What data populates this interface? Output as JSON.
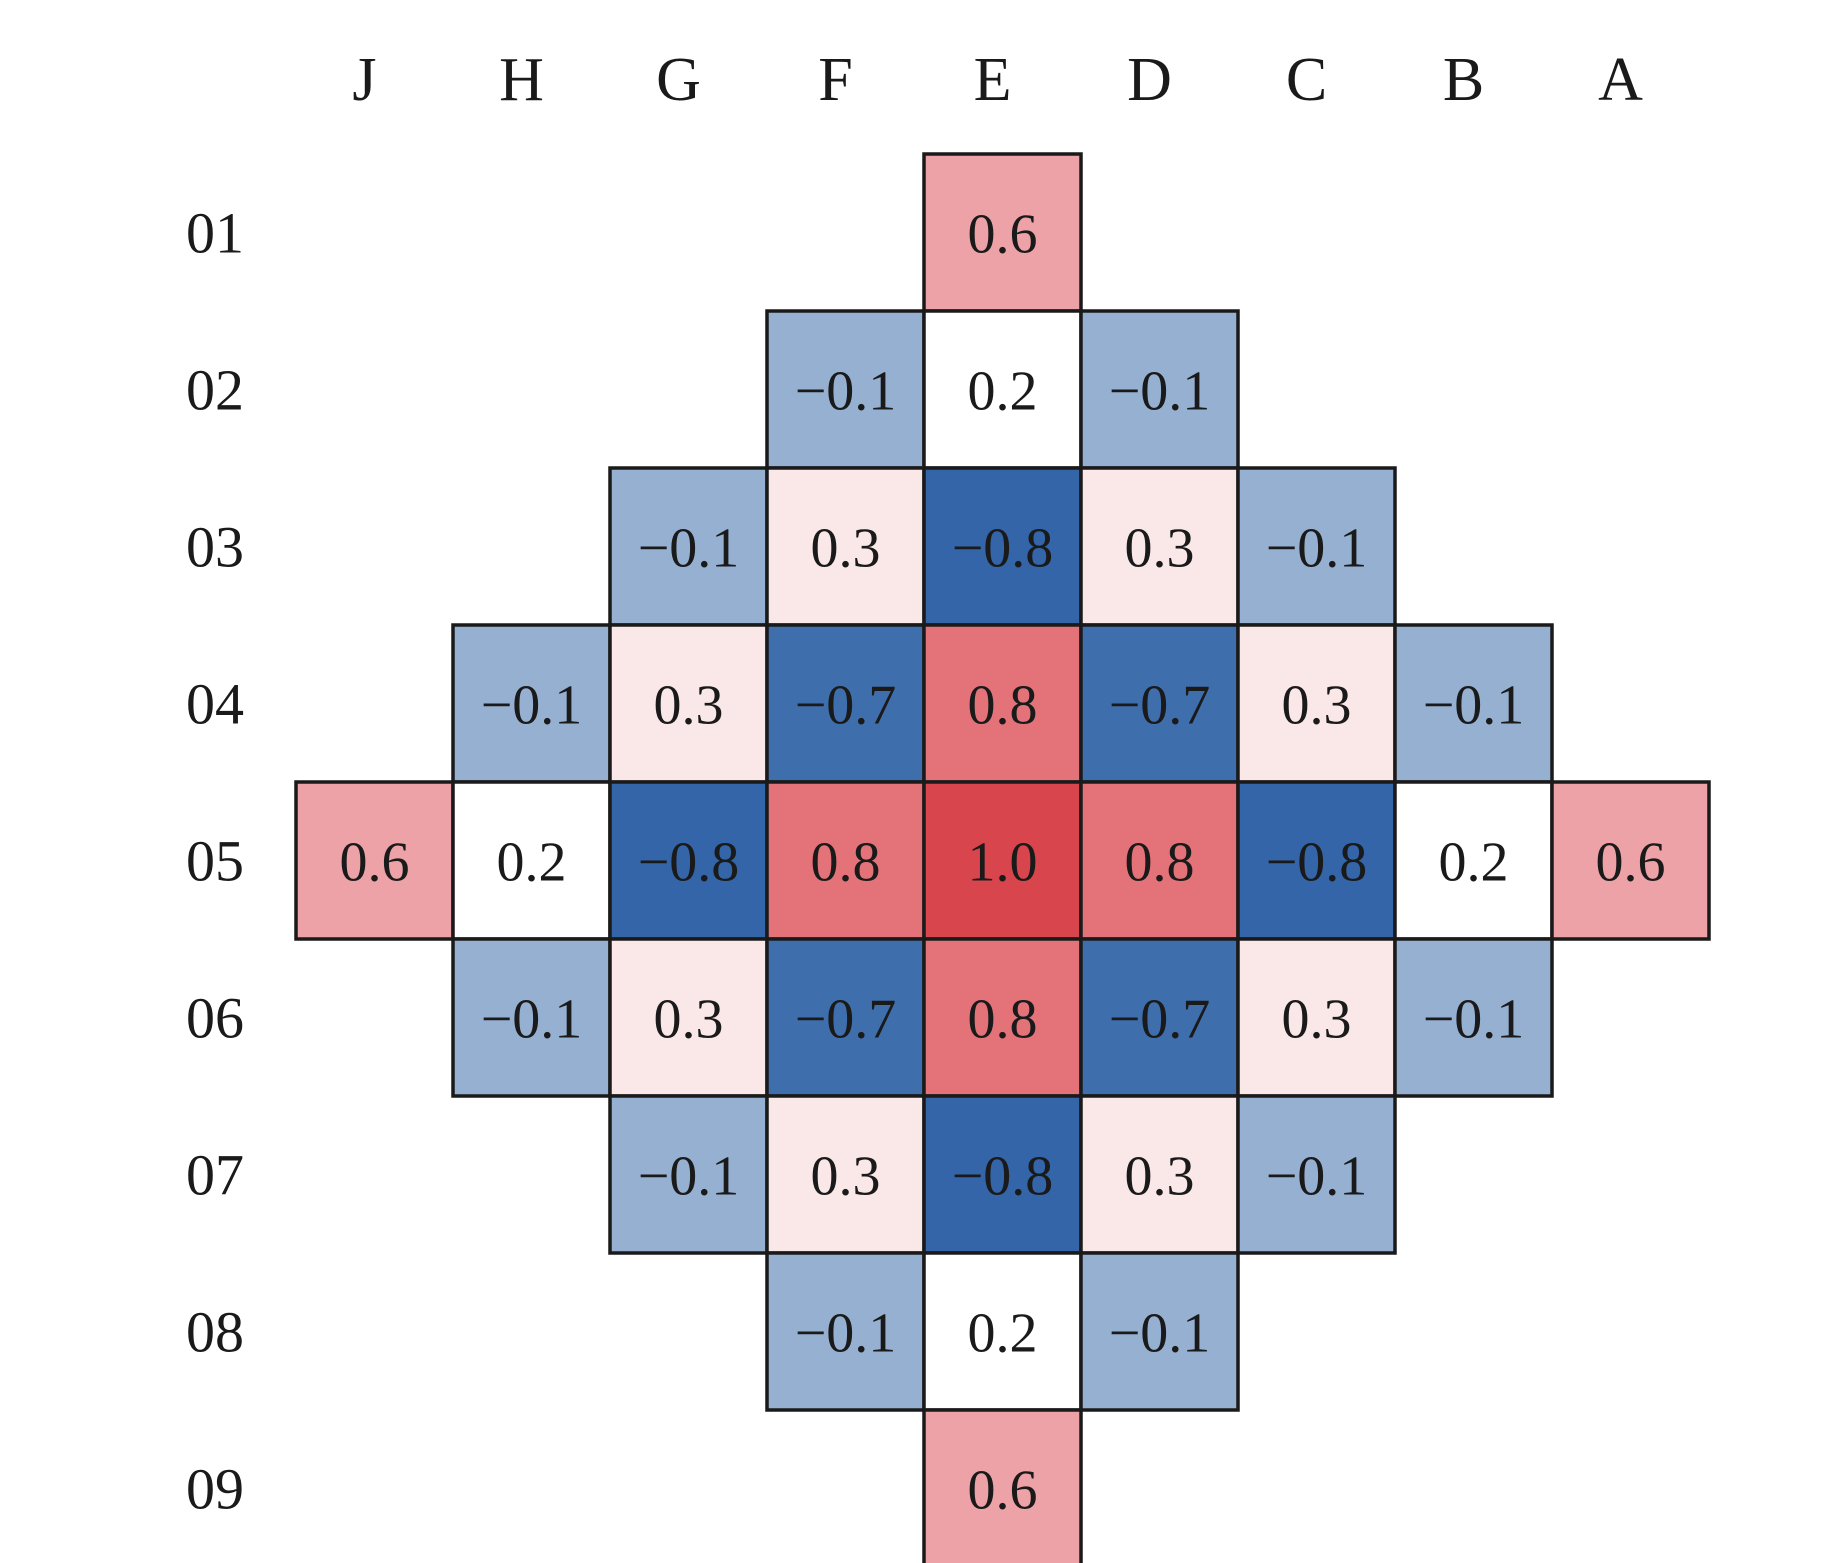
{
  "chart_data": {
    "type": "heatmap",
    "columns": [
      "J",
      "H",
      "G",
      "F",
      "E",
      "D",
      "C",
      "B",
      "A"
    ],
    "rows": [
      "01",
      "02",
      "03",
      "04",
      "05",
      "06",
      "07",
      "08",
      "09"
    ],
    "color_scale": {
      "negative_max": "#3465a8",
      "positive_max": "#d9454c",
      "zero": "#ffffff"
    },
    "cells": [
      {
        "row": "01",
        "col": "E",
        "value": 0.6,
        "label": "0.6"
      },
      {
        "row": "02",
        "col": "F",
        "value": -0.1,
        "label": "−0.1"
      },
      {
        "row": "02",
        "col": "E",
        "value": 0.2,
        "label": "0.2"
      },
      {
        "row": "02",
        "col": "D",
        "value": -0.1,
        "label": "−0.1"
      },
      {
        "row": "03",
        "col": "G",
        "value": -0.1,
        "label": "−0.1"
      },
      {
        "row": "03",
        "col": "F",
        "value": 0.3,
        "label": "0.3"
      },
      {
        "row": "03",
        "col": "E",
        "value": -0.8,
        "label": "−0.8"
      },
      {
        "row": "03",
        "col": "D",
        "value": 0.3,
        "label": "0.3"
      },
      {
        "row": "03",
        "col": "C",
        "value": -0.1,
        "label": "−0.1"
      },
      {
        "row": "04",
        "col": "H",
        "value": -0.1,
        "label": "−0.1"
      },
      {
        "row": "04",
        "col": "G",
        "value": 0.3,
        "label": "0.3"
      },
      {
        "row": "04",
        "col": "F",
        "value": -0.7,
        "label": "−0.7"
      },
      {
        "row": "04",
        "col": "E",
        "value": 0.8,
        "label": "0.8"
      },
      {
        "row": "04",
        "col": "D",
        "value": -0.7,
        "label": "−0.7"
      },
      {
        "row": "04",
        "col": "C",
        "value": 0.3,
        "label": "0.3"
      },
      {
        "row": "04",
        "col": "B",
        "value": -0.1,
        "label": "−0.1"
      },
      {
        "row": "05",
        "col": "J",
        "value": 0.6,
        "label": "0.6"
      },
      {
        "row": "05",
        "col": "H",
        "value": 0.2,
        "label": "0.2"
      },
      {
        "row": "05",
        "col": "G",
        "value": -0.8,
        "label": "−0.8"
      },
      {
        "row": "05",
        "col": "F",
        "value": 0.8,
        "label": "0.8"
      },
      {
        "row": "05",
        "col": "E",
        "value": 1.0,
        "label": "1.0"
      },
      {
        "row": "05",
        "col": "D",
        "value": 0.8,
        "label": "0.8"
      },
      {
        "row": "05",
        "col": "C",
        "value": -0.8,
        "label": "−0.8"
      },
      {
        "row": "05",
        "col": "B",
        "value": 0.2,
        "label": "0.2"
      },
      {
        "row": "05",
        "col": "A",
        "value": 0.6,
        "label": "0.6"
      },
      {
        "row": "06",
        "col": "H",
        "value": -0.1,
        "label": "−0.1"
      },
      {
        "row": "06",
        "col": "G",
        "value": 0.3,
        "label": "0.3"
      },
      {
        "row": "06",
        "col": "F",
        "value": -0.7,
        "label": "−0.7"
      },
      {
        "row": "06",
        "col": "E",
        "value": 0.8,
        "label": "0.8"
      },
      {
        "row": "06",
        "col": "D",
        "value": -0.7,
        "label": "−0.7"
      },
      {
        "row": "06",
        "col": "C",
        "value": 0.3,
        "label": "0.3"
      },
      {
        "row": "06",
        "col": "B",
        "value": -0.1,
        "label": "−0.1"
      },
      {
        "row": "07",
        "col": "G",
        "value": -0.1,
        "label": "−0.1"
      },
      {
        "row": "07",
        "col": "F",
        "value": 0.3,
        "label": "0.3"
      },
      {
        "row": "07",
        "col": "E",
        "value": -0.8,
        "label": "−0.8"
      },
      {
        "row": "07",
        "col": "D",
        "value": 0.3,
        "label": "0.3"
      },
      {
        "row": "07",
        "col": "C",
        "value": -0.1,
        "label": "−0.1"
      },
      {
        "row": "08",
        "col": "F",
        "value": -0.1,
        "label": "−0.1"
      },
      {
        "row": "08",
        "col": "E",
        "value": 0.2,
        "label": "0.2"
      },
      {
        "row": "08",
        "col": "D",
        "value": -0.1,
        "label": "−0.1"
      },
      {
        "row": "09",
        "col": "E",
        "value": 0.6,
        "label": "0.6"
      }
    ]
  }
}
